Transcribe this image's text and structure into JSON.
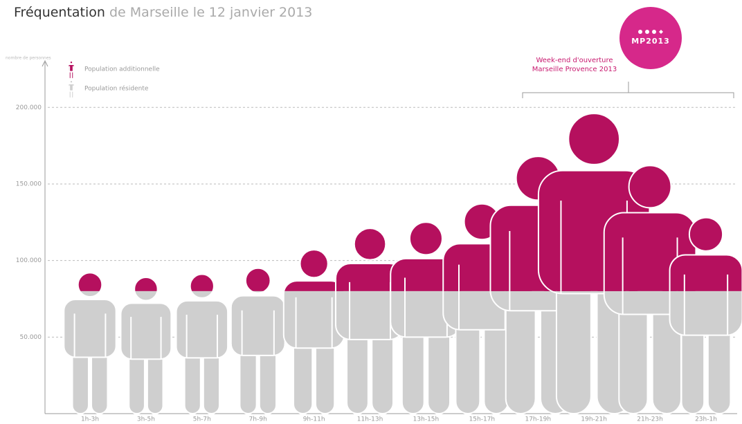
{
  "chart_data": {
    "type": "pictogram",
    "title": [
      "Fréquentation",
      "de Marseille le 12 janvier 2013"
    ],
    "y_label": "nombre de personnes",
    "annotation": [
      "Week-end d'ouverture",
      "Marseille Provence 2013"
    ],
    "logo": "MP2013",
    "categories": [
      "1h-3h",
      "3h-5h",
      "5h-7h",
      "7h-9h",
      "9h-11h",
      "11h-13h",
      "13h-15h",
      "15h-17h",
      "17h-19h",
      "19h-21h",
      "21h-23h",
      "23h-1h"
    ],
    "series": [
      {
        "name": "Population résidente",
        "color": "#cfcfcf",
        "values": [
          80000,
          80000,
          80000,
          80000,
          80000,
          80000,
          80000,
          80000,
          80000,
          80000,
          80000,
          80000
        ]
      },
      {
        "name": "Population additionnelle",
        "color": "#b5105e",
        "values": [
          12000,
          9000,
          11000,
          15000,
          27000,
          41000,
          45000,
          57000,
          88000,
          116000,
          82000,
          48000
        ]
      }
    ],
    "ylim": [
      0,
      220000
    ],
    "yticks": [
      {
        "value": 50000,
        "label": "50.000"
      },
      {
        "value": 100000,
        "label": "100.000"
      },
      {
        "value": 150000,
        "label": "150.000"
      },
      {
        "value": 200000,
        "label": "200.000"
      }
    ],
    "grid": true
  }
}
